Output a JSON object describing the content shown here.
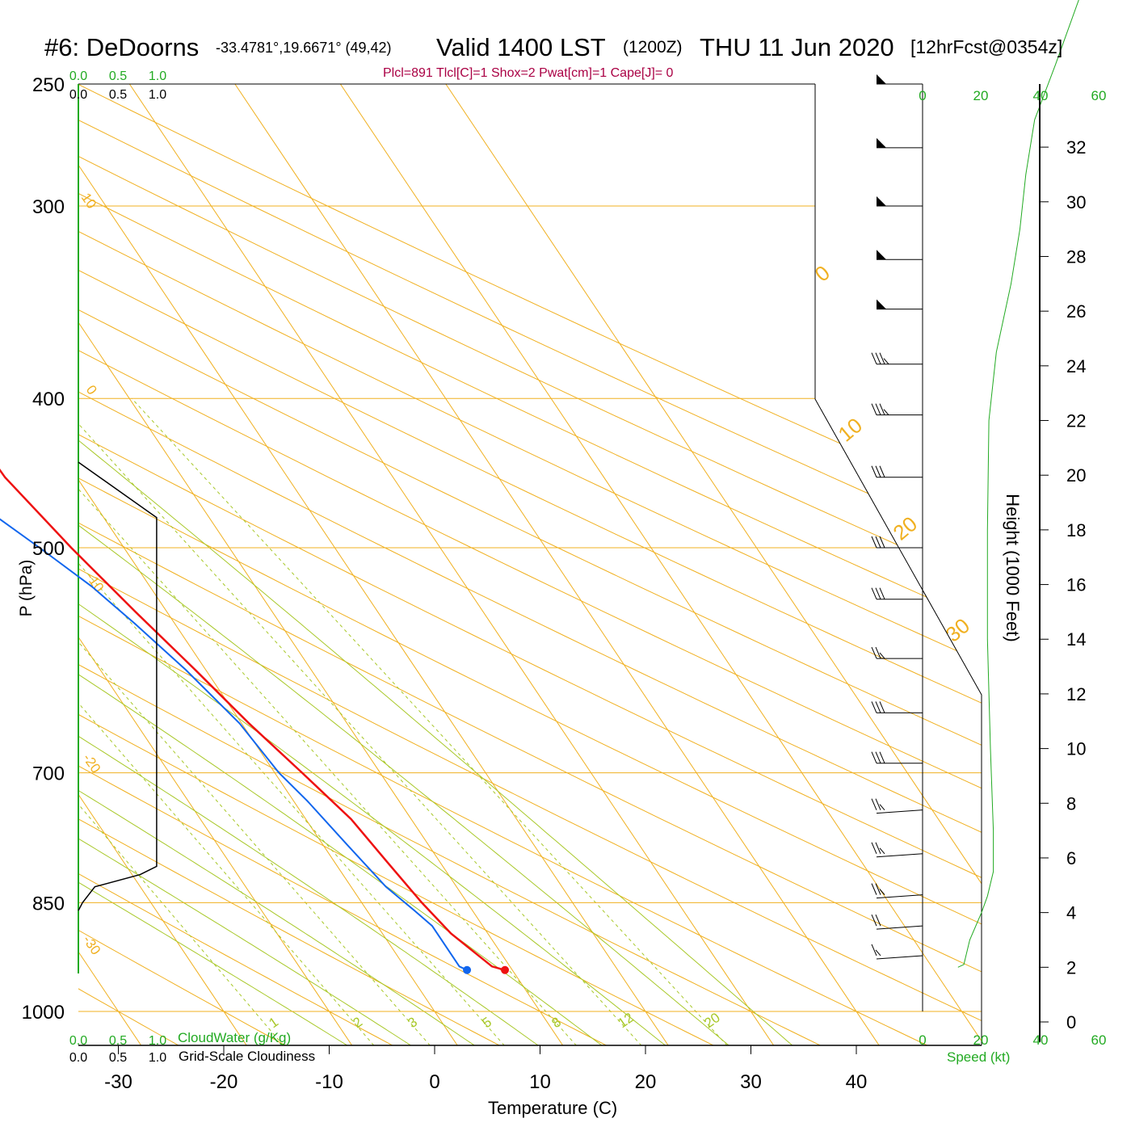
{
  "header": {
    "station": "#6: DeDoorns",
    "coords": "-33.4781°,19.6671° (49,42)",
    "valid": "Valid 1400 LST",
    "zulu": "(1200Z)",
    "date": "THU 11 Jun 2020",
    "forecast": "[12hrFcst@0354z]",
    "indices": "Plcl=891 Tlcl[C]=1 Shox=2 Pwat[cm]=1 Cape[J]= 0"
  },
  "labels": {
    "y_axis": "P (hPa)",
    "x_axis": "Temperature (C)",
    "height_axis": "Height (1000 Feet)",
    "cloudwater": "CloudWater (g/Kg)",
    "cloudiness": "Grid-Scale Cloudiness",
    "speed": "Speed (kt)"
  },
  "colors": {
    "temperature": "#ee1111",
    "dewpoint": "#1166ee",
    "isotherm": "#f0b020",
    "dry_adiabat": "#f0b020",
    "moist_adiabat": "#a8c828",
    "mixing_ratio": "#a8c828",
    "cloud": "#000000",
    "speed_axis": "#22aa22",
    "indices": "#aa0044"
  },
  "chart_data": {
    "type": "line",
    "subtype": "skew-t log-p",
    "x_ticks": [
      "-30",
      "-20",
      "-10",
      "0",
      "10",
      "20",
      "30",
      "40"
    ],
    "y_ticks": [
      "250",
      "300",
      "400",
      "500",
      "700",
      "850",
      "1000"
    ],
    "height_ticks": [
      "0",
      "2",
      "4",
      "6",
      "8",
      "10",
      "12",
      "14",
      "16",
      "18",
      "20",
      "22",
      "24",
      "26",
      "28",
      "30",
      "32"
    ],
    "cloud_ticks_top": [
      "0.0",
      "0.5",
      "1.0"
    ],
    "cloud_ticks_bottom": [
      "0.0",
      "0.5",
      "1.0"
    ],
    "speed_ticks": [
      "0",
      "20",
      "40",
      "60"
    ],
    "isotherm_labels": [
      "0",
      "10",
      "20",
      "30",
      "10",
      "0",
      "-10",
      "-20",
      "-30"
    ],
    "mixing_ratio_labels": [
      "1",
      "2",
      "3",
      "5",
      "8",
      "12",
      "20"
    ],
    "pressure_range": [
      250,
      1000
    ],
    "temperature_range": [
      -34,
      46
    ],
    "series": [
      {
        "name": "temperature",
        "points": [
          [
            9.3,
            940
          ],
          [
            8.3,
            935
          ],
          [
            6.5,
            890
          ],
          [
            5.7,
            850
          ],
          [
            5.0,
            800
          ],
          [
            4.3,
            750
          ],
          [
            2.6,
            700
          ],
          [
            0.7,
            650
          ],
          [
            -1.0,
            600
          ],
          [
            -3.0,
            550
          ],
          [
            -5.0,
            500
          ],
          [
            -6.8,
            450
          ],
          [
            -7.0,
            420
          ],
          [
            -6.8,
            400
          ],
          [
            -6.0,
            370
          ],
          [
            -4.7,
            340
          ],
          [
            -3.5,
            310
          ],
          [
            -3.2,
            300
          ],
          [
            -2.9,
            280
          ],
          [
            -1.7,
            250
          ]
        ]
      },
      {
        "name": "dewpoint",
        "points": [
          [
            5.7,
            940
          ],
          [
            5.2,
            935
          ],
          [
            5.2,
            880
          ],
          [
            4.5,
            860
          ],
          [
            3.3,
            830
          ],
          [
            2.3,
            780
          ],
          [
            1.3,
            730
          ],
          [
            0.4,
            700
          ],
          [
            -0.2,
            650
          ],
          [
            -1.9,
            600
          ],
          [
            -3.8,
            560
          ],
          [
            -5.5,
            530
          ],
          [
            -8.0,
            500
          ],
          [
            -11.8,
            460
          ],
          [
            -14.5,
            420
          ],
          [
            -18.5,
            400
          ],
          [
            -23.0,
            375
          ],
          [
            -29.3,
            370
          ]
        ]
      },
      {
        "name": "dewpoint-upper",
        "points": [
          [
            -33.7,
            304
          ],
          [
            -30.7,
            290
          ],
          [
            -28.5,
            275
          ],
          [
            -26.0,
            252
          ]
        ]
      },
      {
        "name": "cloudiness",
        "points": [
          [
            0.0,
            860
          ],
          [
            0.05,
            850
          ],
          [
            0.2,
            830
          ],
          [
            0.75,
            815
          ],
          [
            0.95,
            805
          ],
          [
            0.95,
            478
          ],
          [
            0.0,
            440
          ]
        ]
      },
      {
        "name": "height",
        "points": [
          [
            12,
            2
          ],
          [
            14,
            2.1
          ],
          [
            16,
            3
          ],
          [
            20,
            4
          ],
          [
            22,
            4.6
          ],
          [
            24,
            5.5
          ],
          [
            24,
            7
          ],
          [
            23,
            10
          ],
          [
            22,
            14
          ],
          [
            22,
            18
          ],
          [
            22.5,
            22
          ],
          [
            25,
            24.5
          ],
          [
            30,
            27
          ],
          [
            33,
            29
          ],
          [
            35,
            31
          ],
          [
            38,
            33
          ],
          [
            45,
            35
          ],
          [
            55,
            38
          ]
        ]
      }
    ],
    "winds": [
      {
        "p": 250,
        "barbs": [
          50
        ]
      },
      {
        "p": 275,
        "barbs": [
          50
        ]
      },
      {
        "p": 300,
        "barbs": [
          50
        ]
      },
      {
        "p": 325,
        "barbs": [
          50
        ]
      },
      {
        "p": 350,
        "barbs": [
          50
        ]
      },
      {
        "p": 380,
        "barbs": [
          10,
          10,
          10,
          5
        ]
      },
      {
        "p": 410,
        "barbs": [
          10,
          10,
          10,
          5
        ]
      },
      {
        "p": 450,
        "barbs": [
          10,
          10,
          10
        ]
      },
      {
        "p": 500,
        "barbs": [
          10,
          10,
          10
        ]
      },
      {
        "p": 540,
        "barbs": [
          10,
          10,
          10
        ]
      },
      {
        "p": 590,
        "barbs": [
          10,
          10,
          5
        ]
      },
      {
        "p": 640,
        "barbs": [
          10,
          10,
          10
        ]
      },
      {
        "p": 690,
        "barbs": [
          10,
          10,
          10
        ]
      },
      {
        "p": 740,
        "barbs": [
          10,
          10,
          5
        ]
      },
      {
        "p": 790,
        "barbs": [
          10,
          10,
          5
        ]
      },
      {
        "p": 840,
        "barbs": [
          10,
          10,
          5
        ]
      },
      {
        "p": 880,
        "barbs": [
          10,
          10
        ]
      },
      {
        "p": 920,
        "barbs": [
          10,
          5
        ]
      }
    ]
  }
}
